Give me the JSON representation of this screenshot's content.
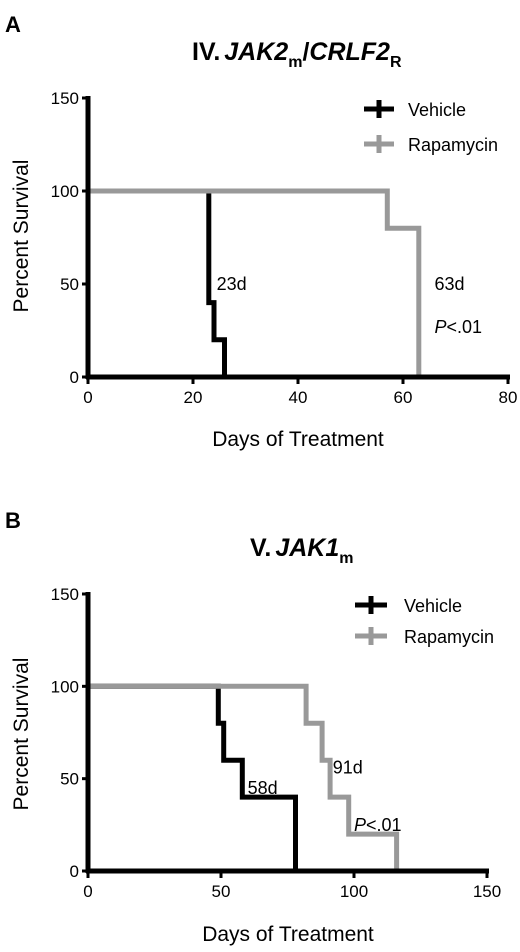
{
  "chart_data": [
    {
      "type": "line",
      "panel": "A",
      "title_main": "IV.",
      "title_gene1": "JAK2",
      "title_sub1": "m",
      "title_sep": "/",
      "title_gene2": "CRLF2",
      "title_sub2": "R",
      "xlabel": "Days of Treatment",
      "ylabel": "Percent Survival",
      "xlim": [
        0,
        80
      ],
      "ylim": [
        0,
        150
      ],
      "xticks": [
        0,
        20,
        40,
        60,
        80
      ],
      "yticks": [
        0,
        50,
        100,
        150
      ],
      "legend_position": "top-right",
      "series": [
        {
          "name": "Vehicle",
          "color": "#000000",
          "x": [
            0,
            23,
            23,
            24,
            24,
            26,
            26
          ],
          "y": [
            100,
            100,
            40,
            40,
            20,
            20,
            0
          ]
        },
        {
          "name": "Rapamycin",
          "color": "#999999",
          "x": [
            0,
            57,
            57,
            63,
            63
          ],
          "y": [
            100,
            100,
            80,
            80,
            0
          ]
        }
      ],
      "annotations": [
        {
          "text": "23d",
          "x": 24.5,
          "y": 50,
          "italic": false
        },
        {
          "text": "63d",
          "x": 66,
          "y": 50,
          "italic": false
        },
        {
          "text_italic": "P",
          "text": "<.01",
          "x": 66,
          "y": 27
        }
      ]
    },
    {
      "type": "line",
      "panel": "B",
      "title_main": "V.",
      "title_gene1": "JAK1",
      "title_sub1": "m",
      "xlabel": "Days of Treatment",
      "ylabel": "Percent Survival",
      "xlim": [
        0,
        150
      ],
      "ylim": [
        0,
        150
      ],
      "xticks": [
        0,
        50,
        100,
        150
      ],
      "yticks": [
        0,
        50,
        100,
        150
      ],
      "legend_position": "top-right",
      "series": [
        {
          "name": "Vehicle",
          "color": "#000000",
          "x": [
            0,
            49,
            49,
            51,
            51,
            58,
            58,
            78,
            78
          ],
          "y": [
            100,
            100,
            80,
            80,
            60,
            60,
            40,
            40,
            0
          ]
        },
        {
          "name": "Rapamycin",
          "color": "#999999",
          "x": [
            0,
            82,
            82,
            88,
            88,
            91,
            91,
            98,
            98,
            116,
            116
          ],
          "y": [
            100,
            100,
            80,
            80,
            60,
            60,
            40,
            40,
            20,
            20,
            0
          ]
        }
      ],
      "annotations": [
        {
          "text": "58d",
          "x": 60,
          "y": 45
        },
        {
          "text": "91d",
          "x": 92,
          "y": 56
        },
        {
          "text_italic": "P",
          "text": "<.01",
          "x": 100,
          "y": 25
        }
      ]
    }
  ]
}
